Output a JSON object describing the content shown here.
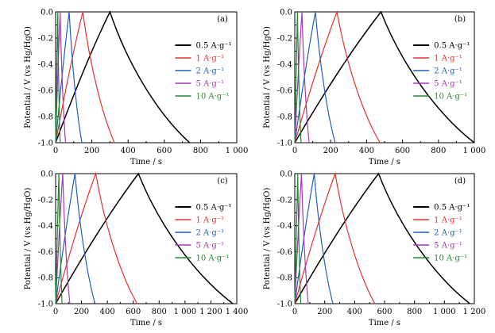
{
  "colors": {
    "0.5 A·g⁻¹": "#000000",
    "1 A·g⁻¹": "#e8312a",
    "2 A·g⁻¹": "#1f5fbf",
    "5 A·g⁻¹": "#a339b5",
    "10 A·g⁻¹": "#1e8a2e"
  },
  "chart_data": [
    {
      "type": "line",
      "label": "(a)",
      "xlabel": "Time / s",
      "ylabel": "Potential / V (vs Hg/HgO)",
      "xlim": [
        0,
        1000
      ],
      "ylim": [
        -1.0,
        0.0
      ],
      "xticks": [
        0,
        200,
        400,
        600,
        800,
        1000
      ],
      "xtick_labels": [
        "0",
        "200",
        "400",
        "600",
        "800",
        "1 000"
      ],
      "yticks": [
        -1.0,
        -0.8,
        -0.6,
        -0.4,
        -0.2,
        0.0
      ],
      "ytick_labels": [
        "-1.0",
        "-0.8",
        "-0.6",
        "-0.4",
        "-0.2",
        "0.0"
      ],
      "legend_position": "right",
      "series": [
        {
          "name": "0.5 A·g⁻¹",
          "x": [
            0,
            300,
            740
          ],
          "y": [
            -1.0,
            0.0,
            -1.0
          ]
        },
        {
          "name": "1 A·g⁻¹",
          "x": [
            0,
            150,
            325
          ],
          "y": [
            -1.0,
            0.0,
            -1.0
          ]
        },
        {
          "name": "2 A·g⁻¹",
          "x": [
            0,
            75,
            145
          ],
          "y": [
            -1.0,
            0.0,
            -1.0
          ]
        },
        {
          "name": "5 A·g⁻¹",
          "x": [
            0,
            25,
            55
          ],
          "y": [
            -1.0,
            0.0,
            -1.0
          ]
        },
        {
          "name": "10 A·g⁻¹",
          "x": [
            0,
            12,
            25
          ],
          "y": [
            -1.0,
            0.0,
            -1.0
          ]
        }
      ]
    },
    {
      "type": "line",
      "label": "(b)",
      "xlabel": "Time / s",
      "ylabel": "Potential / V (vs Hg/HgO)",
      "xlim": [
        0,
        1000
      ],
      "ylim": [
        -1.0,
        0.0
      ],
      "xticks": [
        0,
        200,
        400,
        600,
        800,
        1000
      ],
      "xtick_labels": [
        "0",
        "200",
        "400",
        "600",
        "800",
        "1 000"
      ],
      "yticks": [
        -1.0,
        -0.8,
        -0.6,
        -0.4,
        -0.2,
        0.0
      ],
      "ytick_labels": [
        "-1.0",
        "-0.8",
        "-0.6",
        "-0.4",
        "-0.2",
        "0.0"
      ],
      "legend_position": "right",
      "series": [
        {
          "name": "0.5 A·g⁻¹",
          "x": [
            0,
            480,
            1000
          ],
          "y": [
            -1.0,
            0.0,
            -1.0
          ]
        },
        {
          "name": "1 A·g⁻¹",
          "x": [
            0,
            235,
            475
          ],
          "y": [
            -1.0,
            0.0,
            -1.0
          ]
        },
        {
          "name": "2 A·g⁻¹",
          "x": [
            0,
            115,
            225
          ],
          "y": [
            -1.0,
            0.0,
            -1.0
          ]
        },
        {
          "name": "5 A·g⁻¹",
          "x": [
            0,
            40,
            80
          ],
          "y": [
            -1.0,
            0.0,
            -1.0
          ]
        },
        {
          "name": "10 A·g⁻¹",
          "x": [
            0,
            15,
            35
          ],
          "y": [
            -1.0,
            0.0,
            -1.0
          ]
        }
      ]
    },
    {
      "type": "line",
      "label": "(c)",
      "xlabel": "Time / s",
      "ylabel": "Potential / V (vs Hg/HgO)",
      "xlim": [
        0,
        1400
      ],
      "ylim": [
        -1.0,
        0.0
      ],
      "xticks": [
        0,
        200,
        400,
        600,
        800,
        1000,
        1200,
        1400
      ],
      "xtick_labels": [
        "0",
        "200",
        "400",
        "600",
        "800",
        "1 000",
        "1 200",
        "1 400"
      ],
      "yticks": [
        -1.0,
        -0.8,
        -0.6,
        -0.4,
        -0.2,
        0.0
      ],
      "ytick_labels": [
        "-1.0",
        "-0.8",
        "-0.6",
        "-0.4",
        "-0.2",
        "0.0"
      ],
      "legend_position": "right",
      "series": [
        {
          "name": "0.5 A·g⁻¹",
          "x": [
            0,
            640,
            1370
          ],
          "y": [
            -1.0,
            0.0,
            -1.0
          ]
        },
        {
          "name": "1 A·g⁻¹",
          "x": [
            0,
            310,
            630
          ],
          "y": [
            -1.0,
            0.0,
            -1.0
          ]
        },
        {
          "name": "2 A·g⁻¹",
          "x": [
            0,
            150,
            305
          ],
          "y": [
            -1.0,
            0.0,
            -1.0
          ]
        },
        {
          "name": "5 A·g⁻¹",
          "x": [
            0,
            55,
            110
          ],
          "y": [
            -1.0,
            0.0,
            -1.0
          ]
        },
        {
          "name": "10 A·g⁻¹",
          "x": [
            0,
            25,
            50
          ],
          "y": [
            -1.0,
            0.0,
            -1.0
          ]
        }
      ]
    },
    {
      "type": "line",
      "label": "(d)",
      "xlabel": "Time / s",
      "ylabel": "Potential / V (vs Hg/HgO)",
      "xlim": [
        0,
        1200
      ],
      "ylim": [
        -1.0,
        0.0
      ],
      "xticks": [
        0,
        200,
        400,
        600,
        800,
        1000,
        1200
      ],
      "xtick_labels": [
        "0",
        "200",
        "400",
        "600",
        "800",
        "1 000",
        "1 200"
      ],
      "yticks": [
        -1.0,
        -0.8,
        -0.6,
        -0.4,
        -0.2,
        0.0
      ],
      "ytick_labels": [
        "-1.0",
        "-0.8",
        "-0.6",
        "-0.4",
        "-0.2",
        "0.0"
      ],
      "legend_position": "right",
      "series": [
        {
          "name": "0.5 A·g⁻¹",
          "x": [
            0,
            560,
            1170
          ],
          "y": [
            -1.0,
            0.0,
            -1.0
          ]
        },
        {
          "name": "1 A·g⁻¹",
          "x": [
            0,
            270,
            535
          ],
          "y": [
            -1.0,
            0.0,
            -1.0
          ]
        },
        {
          "name": "2 A·g⁻¹",
          "x": [
            0,
            130,
            255
          ],
          "y": [
            -1.0,
            0.0,
            -1.0
          ]
        },
        {
          "name": "5 A·g⁻¹",
          "x": [
            0,
            45,
            90
          ],
          "y": [
            -1.0,
            0.0,
            -1.0
          ]
        },
        {
          "name": "10 A·g⁻¹",
          "x": [
            0,
            20,
            40
          ],
          "y": [
            -1.0,
            0.0,
            -1.0
          ]
        }
      ]
    }
  ]
}
